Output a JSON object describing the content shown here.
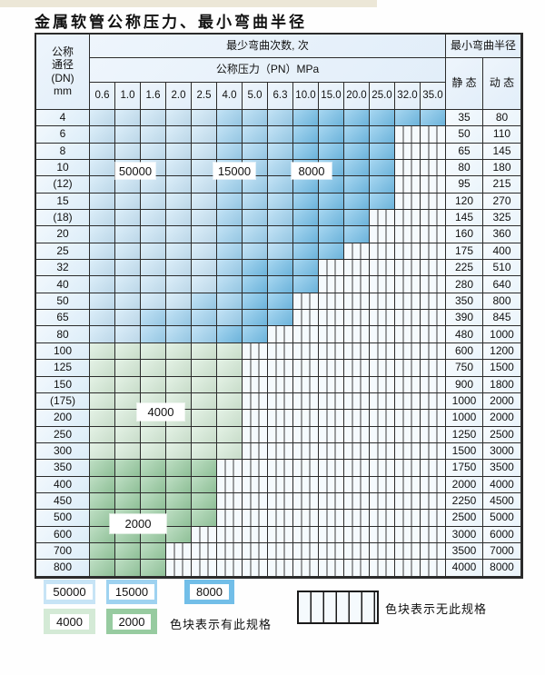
{
  "title": "金属软管公称压力、最小弯曲半径",
  "table": {
    "dn_header_lines": [
      "公称",
      "通径",
      "(DN)",
      "mm"
    ],
    "cycles_header": "最少弯曲次数, 次",
    "pressure_header": "公称压力（PN）MPa",
    "radius_header": "最小弯曲半径",
    "static_header": "静 态",
    "dynamic_header": "动 态",
    "pressure_columns": [
      "0.6",
      "1.0",
      "1.6",
      "2.0",
      "2.5",
      "4.0",
      "5.0",
      "6.3",
      "10.0",
      "15.0",
      "20.0",
      "25.0",
      "32.0",
      "35.0"
    ],
    "cell_code_meaning": {
      "L": "50000次",
      "M": "15000次",
      "D": "8000次",
      "GL": "4000次",
      "GM": "2000次",
      "H": "无此规格"
    },
    "rows": [
      {
        "dn": "4",
        "cells": "L,L,L,L,L,M,M,M,D,D,D,D,D,D",
        "static": "35",
        "dynamic": "80"
      },
      {
        "dn": "6",
        "cells": "L,L,L,L,L,M,M,M,D,D,D,D,H,H",
        "static": "50",
        "dynamic": "110"
      },
      {
        "dn": "8",
        "cells": "L,L,L,L,L,M,M,M,D,D,D,D,H,H",
        "static": "65",
        "dynamic": "145"
      },
      {
        "dn": "10",
        "cells": "L,L,L,L,L,M,M,M,D,D,D,D,H,H",
        "static": "80",
        "dynamic": "180"
      },
      {
        "dn": "(12)",
        "cells": "L,L,L,L,L,M,M,M,D,D,D,D,H,H",
        "static": "95",
        "dynamic": "215"
      },
      {
        "dn": "15",
        "cells": "L,L,L,L,L,M,M,M,D,D,D,D,H,H",
        "static": "120",
        "dynamic": "270"
      },
      {
        "dn": "(18)",
        "cells": "L,L,L,L,L,M,M,M,D,D,D,H,H,H",
        "static": "145",
        "dynamic": "325"
      },
      {
        "dn": "20",
        "cells": "L,L,L,L,L,M,M,M,D,D,D,H,H,H",
        "static": "160",
        "dynamic": "360"
      },
      {
        "dn": "25",
        "cells": "L,L,L,L,L,M,M,M,D,D,H,H,H,H",
        "static": "175",
        "dynamic": "400"
      },
      {
        "dn": "32",
        "cells": "L,L,L,L,L,M,D,D,D,H,H,H,H,H",
        "static": "225",
        "dynamic": "510"
      },
      {
        "dn": "40",
        "cells": "L,L,L,L,L,M,D,D,D,H,H,H,H,H",
        "static": "280",
        "dynamic": "640"
      },
      {
        "dn": "50",
        "cells": "L,L,L,L,M,M,D,D,H,H,H,H,H,H",
        "static": "350",
        "dynamic": "800"
      },
      {
        "dn": "65",
        "cells": "L,L,M,M,M,M,D,D,H,H,H,H,H,H",
        "static": "390",
        "dynamic": "845"
      },
      {
        "dn": "80",
        "cells": "L,L,M,M,M,D,D,H,H,H,H,H,H,H",
        "static": "480",
        "dynamic": "1000"
      },
      {
        "dn": "100",
        "cells": "GL,GL,GL,GL,GL,GL,H,H,H,H,H,H,H,H",
        "static": "600",
        "dynamic": "1200"
      },
      {
        "dn": "125",
        "cells": "GL,GL,GL,GL,GL,GL,H,H,H,H,H,H,H,H",
        "static": "750",
        "dynamic": "1500"
      },
      {
        "dn": "150",
        "cells": "GL,GL,GL,GL,GL,GL,H,H,H,H,H,H,H,H",
        "static": "900",
        "dynamic": "1800"
      },
      {
        "dn": "(175)",
        "cells": "GL,GL,GL,GL,GL,GL,H,H,H,H,H,H,H,H",
        "static": "1000",
        "dynamic": "2000"
      },
      {
        "dn": "200",
        "cells": "GL,GL,GL,GL,GL,GL,H,H,H,H,H,H,H,H",
        "static": "1000",
        "dynamic": "2000"
      },
      {
        "dn": "250",
        "cells": "GL,GL,GL,GL,GL,GL,H,H,H,H,H,H,H,H",
        "static": "1250",
        "dynamic": "2500"
      },
      {
        "dn": "300",
        "cells": "GL,GL,GL,GL,GL,GL,H,H,H,H,H,H,H,H",
        "static": "1500",
        "dynamic": "3000"
      },
      {
        "dn": "350",
        "cells": "GM,GM,GM,GM,GM,H,H,H,H,H,H,H,H,H",
        "static": "1750",
        "dynamic": "3500"
      },
      {
        "dn": "400",
        "cells": "GM,GM,GM,GM,GM,H,H,H,H,H,H,H,H,H",
        "static": "2000",
        "dynamic": "4000"
      },
      {
        "dn": "450",
        "cells": "GM,GM,GM,GM,GM,H,H,H,H,H,H,H,H,H",
        "static": "2250",
        "dynamic": "4500"
      },
      {
        "dn": "500",
        "cells": "GM,GM,GM,GM,GM,H,H,H,H,H,H,H,H,H",
        "static": "2500",
        "dynamic": "5000"
      },
      {
        "dn": "600",
        "cells": "GM,GM,GM,GM,H,H,H,H,H,H,H,H,H,H",
        "static": "3000",
        "dynamic": "6000"
      },
      {
        "dn": "700",
        "cells": "GM,GM,GM,H,H,H,H,H,H,H,H,H,H,H",
        "static": "3500",
        "dynamic": "7000"
      },
      {
        "dn": "800",
        "cells": "GM,GM,GM,H,H,H,H,H,H,H,H,H,H,H",
        "static": "4000",
        "dynamic": "8000"
      }
    ]
  },
  "region_labels": {
    "b50000": "50000",
    "b15000": "15000",
    "b8000": "8000",
    "g4000": "4000",
    "g2000": "2000"
  },
  "legend": {
    "items": [
      {
        "label": "50000",
        "key": "L"
      },
      {
        "label": "15000",
        "key": "M"
      },
      {
        "label": "8000",
        "key": "D"
      },
      {
        "label": "4000",
        "key": "GL"
      },
      {
        "label": "2000",
        "key": "GM"
      }
    ],
    "available_note": "色块表示有此规格",
    "unavailable_note": "色块表示无此规格"
  },
  "colors": {
    "grid": "#2b2b2b",
    "light_blue": "#c7e4f6",
    "medium_blue": "#9ed2f0",
    "dark_blue": "#72bee8",
    "light_green": "#d4ead6",
    "medium_green": "#97cba0",
    "hatch_bg": "#f5fafd",
    "hatch_line": "#3f3f3f",
    "header_bg": "#e2eef9",
    "dn_bg": "#dcedf8",
    "value_bg": "#eaf4fb",
    "accent_bar": "#ece7d7"
  }
}
